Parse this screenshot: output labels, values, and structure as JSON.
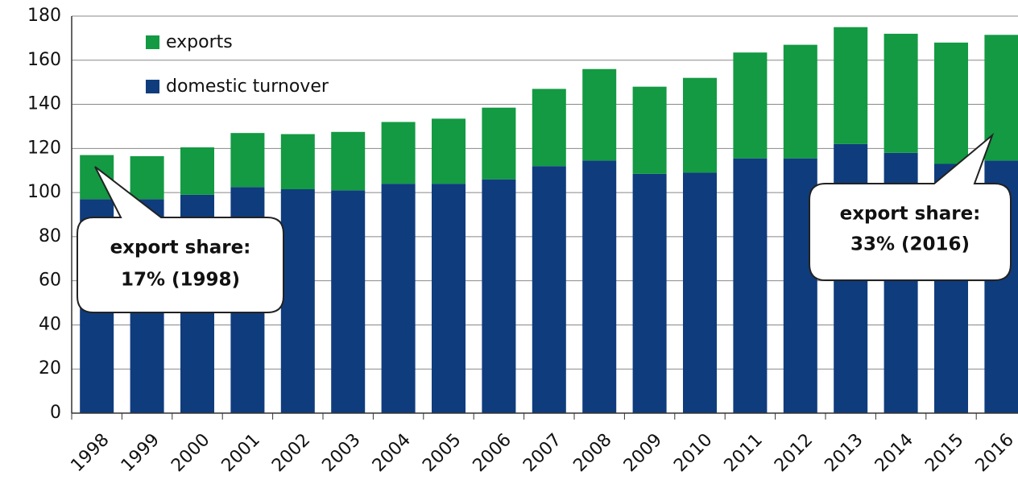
{
  "chart_data": {
    "type": "stacked_bar",
    "categories": [
      "1998",
      "1999",
      "2000",
      "2001",
      "2002",
      "2003",
      "2004",
      "2005",
      "2006",
      "2007",
      "2008",
      "2009",
      "2010",
      "2011",
      "2012",
      "2013",
      "2014",
      "2015",
      "2016"
    ],
    "series": [
      {
        "name": "domestic turnover",
        "color": "#0f3c7d",
        "values": [
          97,
          97,
          99,
          102.5,
          101.5,
          101,
          104,
          104,
          106,
          112,
          114.5,
          108.5,
          109,
          115.5,
          115.5,
          122,
          118,
          113,
          114.5
        ]
      },
      {
        "name": "exports",
        "color": "#139a43",
        "values": [
          20,
          19.5,
          21.5,
          24.5,
          25,
          26.5,
          28,
          29.5,
          32.5,
          35,
          41.5,
          39.5,
          43,
          48,
          51.5,
          53,
          54,
          55,
          57
        ]
      }
    ],
    "ylim": [
      0,
      180
    ],
    "yticks": [
      0,
      20,
      40,
      60,
      80,
      100,
      120,
      140,
      160,
      180
    ],
    "grid": true,
    "annotations": [
      {
        "line1": "export share:",
        "line2": "17% (1998)"
      },
      {
        "line1": "export share:",
        "line2": "33% (2016)"
      }
    ]
  }
}
